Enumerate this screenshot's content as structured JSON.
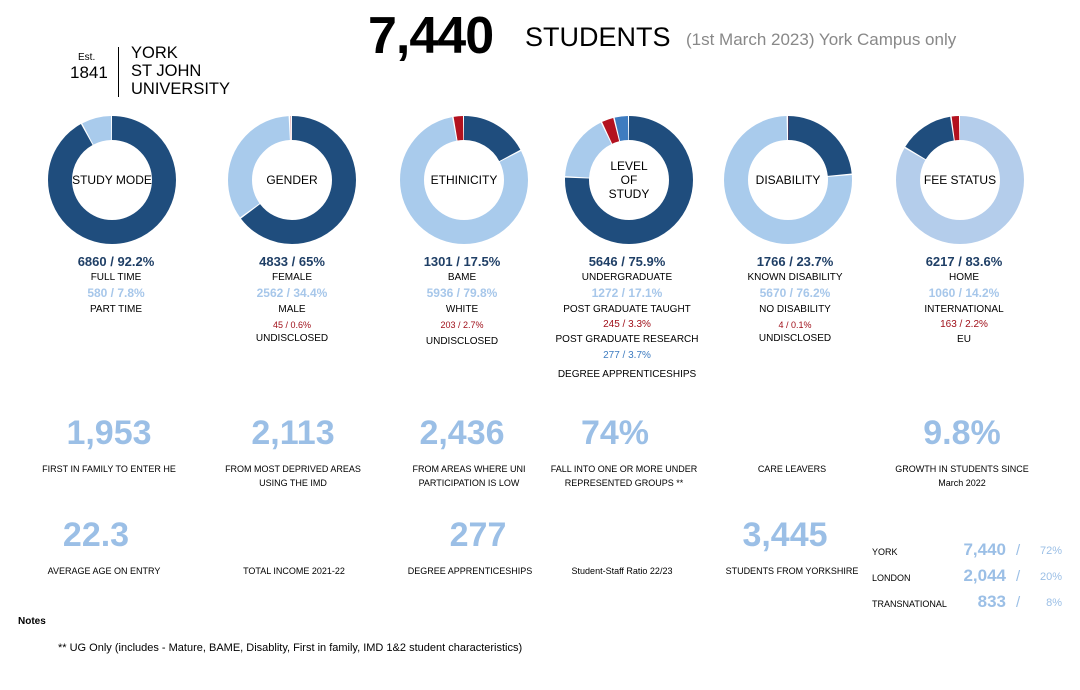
{
  "header": {
    "total": "7,440",
    "label": "STUDENTS",
    "subtitle": "(1st March 2023)  York Campus only"
  },
  "logo": {
    "est": "Est.",
    "year": "1841",
    "line1": "YORK",
    "line2": "ST JOHN",
    "line3": "UNIVERSITY"
  },
  "colors": {
    "dark": "#1f4d7d",
    "light": "#a9cbec",
    "lighter": "#b4cdeb",
    "red": "#b3121f",
    "mid": "#3e7cc0"
  },
  "donuts": [
    {
      "title": "STUDY MODE",
      "segments": [
        {
          "value": 92.2,
          "color": "#1f4d7d"
        },
        {
          "value": 7.8,
          "color": "#a9cbec"
        }
      ],
      "main": "6860 / 92.2%",
      "main_caption": "FULL TIME",
      "second": "580 / 7.8%",
      "second_caption": "PART TIME"
    },
    {
      "title": "GENDER",
      "segments": [
        {
          "value": 65,
          "color": "#1f4d7d"
        },
        {
          "value": 34.4,
          "color": "#a9cbec"
        },
        {
          "value": 0.6,
          "color": "#e5b3b7"
        }
      ],
      "main": "4833 / 65%",
      "main_caption": "FEMALE",
      "second": "2562 / 34.4%",
      "second_caption": "MALE",
      "third": "45 / 0.6%",
      "third_caption": "UNDISCLOSED"
    },
    {
      "title": "ETHINICITY",
      "segments": [
        {
          "value": 17.5,
          "color": "#1f4d7d"
        },
        {
          "value": 79.8,
          "color": "#a9cbec"
        },
        {
          "value": 2.7,
          "color": "#b3121f"
        }
      ],
      "main": "1301 / 17.5%",
      "main_caption": "BAME",
      "second": "5936 / 79.8%",
      "second_caption": "WHITE",
      "third": "203 / 2.7%",
      "third_caption": "UNDISCLOSED"
    },
    {
      "title": "LEVEL OF STUDY",
      "title_lines": [
        "LEVEL",
        "OF",
        "STUDY"
      ],
      "segments": [
        {
          "value": 75.9,
          "color": "#1f4d7d"
        },
        {
          "value": 17.1,
          "color": "#a9cbec"
        },
        {
          "value": 3.3,
          "color": "#b3121f"
        },
        {
          "value": 3.7,
          "color": "#3e7cc0"
        }
      ],
      "main": "5646 / 75.9%",
      "main_caption": "UNDERGRADUATE",
      "second": "1272 / 17.1%",
      "second_caption": "POST GRADUATE TAUGHT",
      "third": "245 / 3.3%",
      "third_caption": "POST GRADUATE RESEARCH",
      "fourth": "277 / 3.7%",
      "fourth_caption": "DEGREE APPRENTICESHIPS"
    },
    {
      "title": "DISABILITY",
      "segments": [
        {
          "value": 23.7,
          "color": "#1f4d7d"
        },
        {
          "value": 76.2,
          "color": "#a9cbec"
        },
        {
          "value": 0.1,
          "color": "#b3121f"
        }
      ],
      "main": "1766 / 23.7%",
      "main_caption": "KNOWN DISABILITY",
      "second": "5670 / 76.2%",
      "second_caption": "NO DISABILITY",
      "third": "4 / 0.1%",
      "third_caption": "UNDISCLOSED"
    },
    {
      "title": "FEE STATUS",
      "segments": [
        {
          "value": 83.6,
          "color": "#b4cdeb"
        },
        {
          "value": 14.2,
          "color": "#1f4d7d"
        },
        {
          "value": 2.2,
          "color": "#b3121f"
        }
      ],
      "main": "6217 / 83.6%",
      "main_caption": "HOME",
      "second": "1060 / 14.2%",
      "second_caption": "INTERNATIONAL",
      "third": "163 / 2.2%",
      "third_caption": "EU"
    }
  ],
  "kpis_row1": [
    {
      "value": "1,953",
      "caption": "FIRST IN FAMILY TO ENTER HE"
    },
    {
      "value": "2,113",
      "caption": "FROM MOST DEPRIVED AREAS USING THE IMD"
    },
    {
      "value": "2,436",
      "caption": "FROM AREAS WHERE UNI PARTICIPATION IS LOW"
    },
    {
      "value": "74%",
      "caption": "FALL INTO ONE OR MORE UNDER REPRESENTED GROUPS **"
    },
    {
      "value": "",
      "caption": "CARE LEAVERS"
    },
    {
      "value": "9.8%",
      "caption": "GROWTH IN STUDENTS SINCE March 2022"
    }
  ],
  "kpis_row2": [
    {
      "value": "22.3",
      "caption": "AVERAGE AGE ON ENTRY"
    },
    {
      "value": "",
      "caption": "TOTAL INCOME 2021-22"
    },
    {
      "value": "277",
      "caption": "DEGREE APPRENTICESHIPS"
    },
    {
      "value": "",
      "caption": "Student-Staff Ratio 22/23"
    },
    {
      "value": "3,445",
      "caption": "STUDENTS FROM YORKSHIRE"
    }
  ],
  "campuses": [
    {
      "name": "YORK",
      "value": "7,440",
      "slash": "/",
      "pct": "72%"
    },
    {
      "name": "LONDON",
      "value": "2,044",
      "slash": "/",
      "pct": "20%"
    },
    {
      "name": "TRANSNATIONAL",
      "value": "833",
      "slash": "/",
      "pct": "8%"
    }
  ],
  "notes": {
    "title": "Notes",
    "text": "** UG Only (includes - Mature, BAME, Disablity, First in family, IMD 1&2 student characteristics)"
  }
}
